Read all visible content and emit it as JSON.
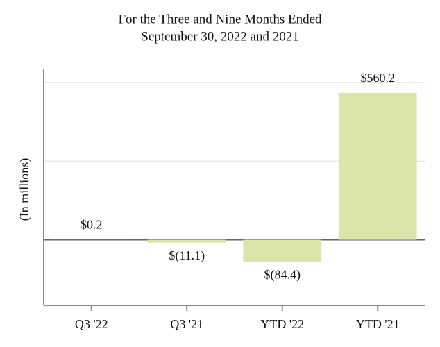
{
  "chart_data": {
    "type": "bar",
    "title": [
      "For the Three and Nine Months Ended",
      "September 30, 2022 and 2021"
    ],
    "y_label": "(In millions)",
    "categories": [
      "Q3 '22",
      "Q3 '21",
      "YTD '22",
      "YTD '21"
    ],
    "values": [
      0.2,
      -11.1,
      -84.4,
      560.2
    ],
    "value_labels": [
      "$0.2",
      "$(11.1)",
      "$(84.4)",
      "$560.2"
    ],
    "color": "#dce5a9",
    "ylim": [
      -250,
      650
    ],
    "yticks": [
      0,
      300,
      600
    ],
    "grid": true
  }
}
